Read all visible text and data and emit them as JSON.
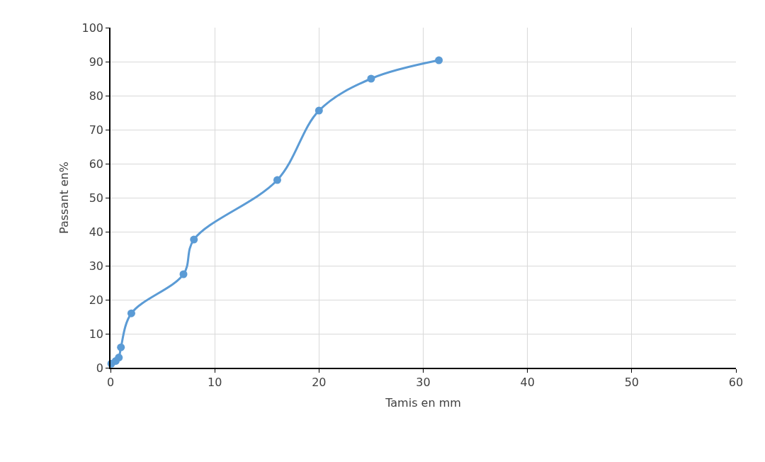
{
  "chart_data": {
    "type": "line",
    "xlabel": "Tamis en mm",
    "ylabel": "Passant en%",
    "x": [
      0.08,
      0.5,
      0.8,
      1,
      2,
      7,
      8,
      16,
      20,
      25,
      31.5
    ],
    "series": [
      {
        "color": "#5b9bd5",
        "values": [
          1.2,
          2,
          3,
          6,
          16,
          27.5,
          37.7,
          55.2,
          75.6,
          85,
          90.4
        ]
      }
    ],
    "xlim": [
      0,
      60
    ],
    "xticks": [
      0,
      10,
      20,
      30,
      40,
      50,
      60
    ],
    "ylim": [
      0,
      100
    ],
    "yticks": [
      0,
      10,
      20,
      30,
      40,
      50,
      60,
      70,
      80,
      90,
      100
    ],
    "grid": true,
    "marker": "circle",
    "line_style": "solid",
    "legend": false
  }
}
